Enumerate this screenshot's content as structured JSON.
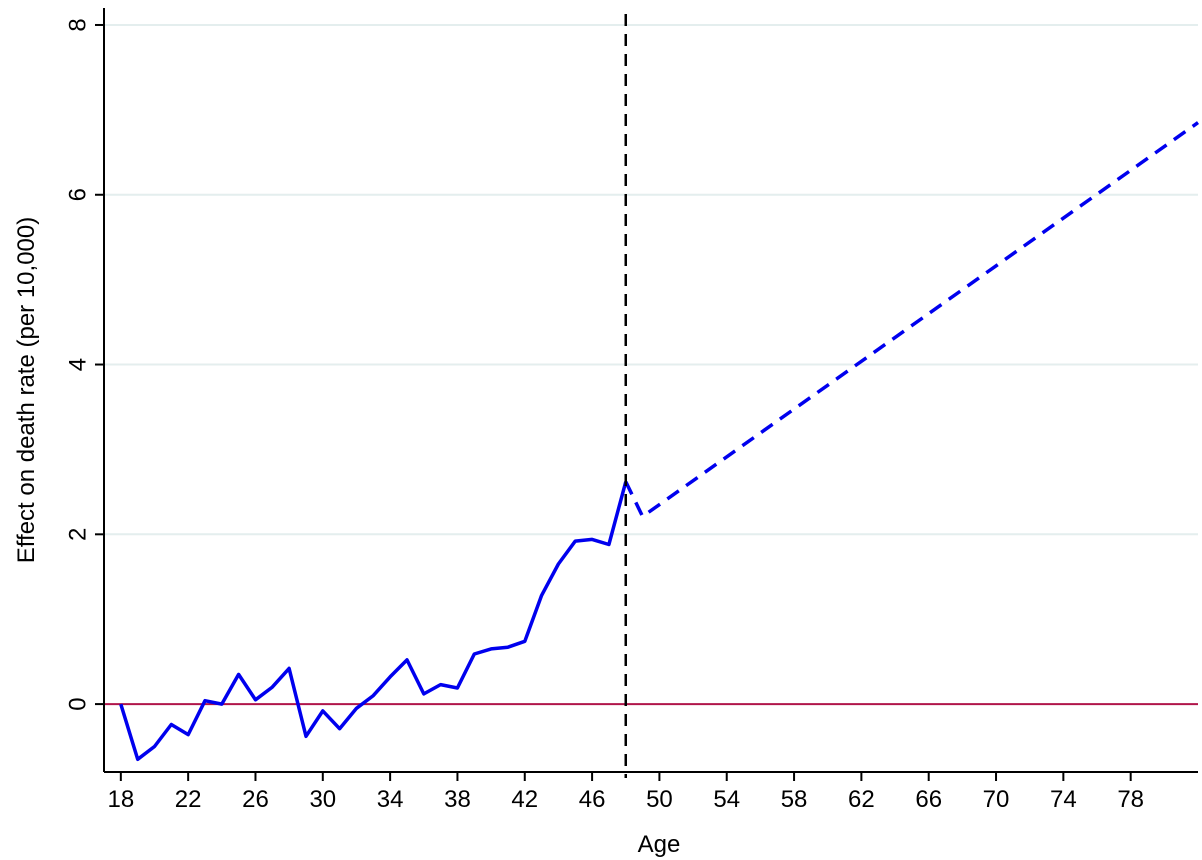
{
  "chart_data": {
    "type": "line",
    "title": "",
    "xlabel": "Age",
    "ylabel": "Effect on death rate (per 10,000)",
    "xlim": [
      17,
      82
    ],
    "ylim": [
      -0.8,
      8.2
    ],
    "x_ticks": [
      18,
      22,
      26,
      30,
      34,
      38,
      42,
      46,
      50,
      54,
      58,
      62,
      66,
      70,
      74,
      78
    ],
    "y_ticks": [
      0,
      2,
      4,
      6,
      8
    ],
    "grid": "horizontal",
    "reference_line_y": 0,
    "vertical_marker_x": 48,
    "series": [
      {
        "style": "solid",
        "color": "#0000ee",
        "x": [
          18,
          19,
          20,
          21,
          22,
          23,
          24,
          25,
          26,
          27,
          28,
          29,
          30,
          31,
          32,
          33,
          34,
          35,
          36,
          37,
          38,
          39,
          40,
          41,
          42,
          43,
          44,
          45,
          46,
          47,
          48
        ],
        "y": [
          0.0,
          -0.65,
          -0.5,
          -0.24,
          -0.36,
          0.04,
          0.0,
          0.35,
          0.05,
          0.2,
          0.42,
          -0.38,
          -0.08,
          -0.29,
          -0.05,
          0.1,
          0.32,
          0.52,
          0.12,
          0.23,
          0.19,
          0.59,
          0.65,
          0.67,
          0.74,
          1.28,
          1.65,
          1.92,
          1.94,
          1.88,
          2.62
        ]
      },
      {
        "style": "dashed",
        "color": "#0000ee",
        "x": [
          48,
          49,
          82
        ],
        "y": [
          2.62,
          2.21,
          6.85
        ]
      }
    ],
    "colors": {
      "series": "#0000ee",
      "zero_line": "#b0144a",
      "grid": "#e4eeee",
      "vertical_marker": "#000000"
    }
  }
}
